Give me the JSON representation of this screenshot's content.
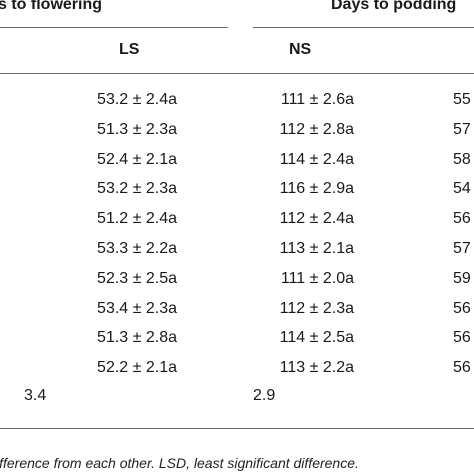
{
  "headers": {
    "group_left": "s to flowering",
    "group_right": "Days to podding",
    "col_ls": "LS",
    "col_ns": "NS"
  },
  "rows": [
    {
      "ls": "53.2 ± 2.4a",
      "ns": "111 ± 2.6a",
      "right": "55"
    },
    {
      "ls": "51.3 ± 2.3a",
      "ns": "112 ± 2.8a",
      "right": "57"
    },
    {
      "ls": "52.4 ± 2.1a",
      "ns": "114 ± 2.4a",
      "right": "58"
    },
    {
      "ls": "53.2 ± 2.3a",
      "ns": "116 ± 2.9a",
      "right": "54"
    },
    {
      "ls": "51.2 ± 2.4a",
      "ns": "112 ± 2.4a",
      "right": "56"
    },
    {
      "ls": "53.3 ± 2.2a",
      "ns": "113 ± 2.1a",
      "right": "57"
    },
    {
      "ls": "52.3 ± 2.5a",
      "ns": "111 ± 2.0a",
      "right": "59"
    },
    {
      "ls": "53.4 ± 2.3a",
      "ns": "112 ± 2.3a",
      "right": "56"
    },
    {
      "ls": "51.3 ± 2.8a",
      "ns": "114 ± 2.5a",
      "right": "56"
    },
    {
      "ls": "52.2 ± 2.1a",
      "ns": "113 ± 2.2a",
      "right": "56"
    }
  ],
  "lsd": {
    "left": "3.4",
    "right": "2.9"
  },
  "footnote": "ifference from each other. LSD, least significant difference."
}
